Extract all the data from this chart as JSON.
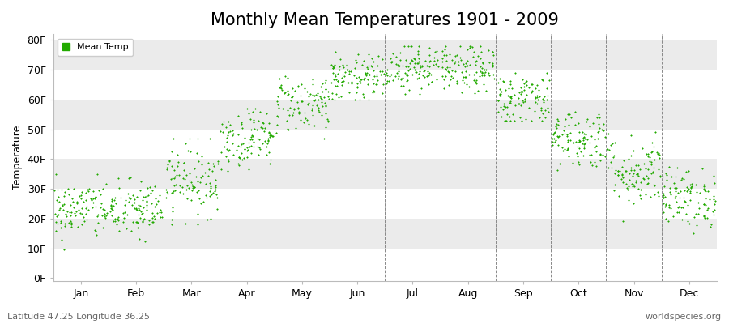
{
  "title": "Monthly Mean Temperatures 1901 - 2009",
  "ylabel": "Temperature",
  "xlabel_labels": [
    "Jan",
    "Feb",
    "Mar",
    "Apr",
    "May",
    "Jun",
    "Jul",
    "Aug",
    "Sep",
    "Oct",
    "Nov",
    "Dec"
  ],
  "ytick_labels": [
    "0F",
    "10F",
    "20F",
    "30F",
    "40F",
    "50F",
    "60F",
    "70F",
    "80F"
  ],
  "ytick_values": [
    0,
    10,
    20,
    30,
    40,
    50,
    60,
    70,
    80
  ],
  "ylim": [
    -1,
    82
  ],
  "xlim": [
    0,
    12
  ],
  "legend_label": "Mean Temp",
  "dot_color": "#22aa00",
  "bg_white": "#ffffff",
  "bg_gray": "#ebebeb",
  "footer_left": "Latitude 47.25 Longitude 36.25",
  "footer_right": "worldspecies.org",
  "title_fontsize": 15,
  "label_fontsize": 9,
  "tick_fontsize": 9,
  "n_years": 109,
  "monthly_mean_F": [
    23,
    23,
    33,
    47,
    59,
    67,
    71,
    70,
    60,
    47,
    36,
    27
  ],
  "monthly_std_F": [
    5,
    5,
    6,
    5,
    5,
    4,
    4,
    4,
    5,
    5,
    6,
    5
  ],
  "monthly_min_F": [
    6,
    9,
    18,
    36,
    47,
    60,
    62,
    62,
    53,
    36,
    19,
    15
  ],
  "monthly_max_F": [
    35,
    35,
    47,
    57,
    68,
    76,
    78,
    78,
    70,
    64,
    50,
    40
  ]
}
